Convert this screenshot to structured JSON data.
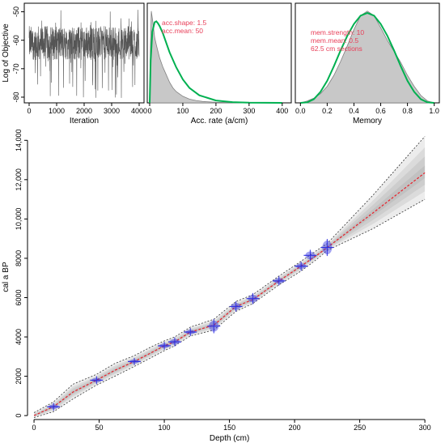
{
  "chart_data": [
    {
      "id": "iterations",
      "type": "line",
      "title": "",
      "xlabel": "Iteration",
      "ylabel": "Log of Objective",
      "xlim": [
        0,
        4000
      ],
      "ylim": [
        -82,
        -47
      ],
      "xticks": [
        0,
        1000,
        2000,
        3000,
        4000
      ],
      "yticks": [
        -50,
        -60,
        -70,
        -80
      ],
      "yticklabels": [
        "-50",
        "-60",
        "-70",
        "-80"
      ],
      "series": [
        {
          "n_points": 4000,
          "mean": -61,
          "spread": 6,
          "min": -81,
          "max": -49,
          "color": "#555555"
        }
      ]
    },
    {
      "id": "acc-rate",
      "type": "area",
      "title": "",
      "xlabel": "Acc. rate (a/cm)",
      "ylabel": "",
      "xlim": [
        0,
        420
      ],
      "xticks": [
        0,
        100,
        200,
        300,
        400
      ],
      "annotations": [
        "acc.shape:  1.5",
        "acc.mean:  50"
      ],
      "posterior": {
        "x": [
          0,
          2,
          5,
          10,
          15,
          20,
          25,
          30,
          40,
          50,
          60,
          70,
          80,
          100,
          120,
          140,
          160,
          180,
          200,
          250,
          300,
          350,
          400
        ],
        "y": [
          0.0,
          0.55,
          0.98,
          0.85,
          0.7,
          0.62,
          0.55,
          0.48,
          0.38,
          0.3,
          0.22,
          0.16,
          0.12,
          0.07,
          0.04,
          0.025,
          0.015,
          0.01,
          0.006,
          0.003,
          0.001,
          0.0005,
          0.0
        ]
      },
      "prior": {
        "x": [
          0,
          3,
          8,
          15,
          20,
          25,
          30,
          40,
          50,
          60,
          80,
          100,
          120,
          150,
          200,
          250,
          300,
          350,
          400
        ],
        "y": [
          0.0,
          0.45,
          0.76,
          0.86,
          0.87,
          0.85,
          0.82,
          0.74,
          0.64,
          0.54,
          0.38,
          0.25,
          0.16,
          0.08,
          0.025,
          0.008,
          0.002,
          0.0005,
          0.0
        ]
      },
      "colors": {
        "posterior_fill": "#c8c8c8",
        "posterior_line": "#808080",
        "prior": "#00b050"
      }
    },
    {
      "id": "memory",
      "type": "area",
      "title": "",
      "xlabel": "Memory",
      "ylabel": "",
      "xlim": [
        -0.02,
        1.02
      ],
      "xticks": [
        0.0,
        0.2,
        0.4,
        0.6,
        0.8,
        1.0
      ],
      "xticklabels": [
        "0.0",
        "0.2",
        "0.4",
        "0.6",
        "0.8",
        "1.0"
      ],
      "annotations": [
        "mem.strength:  10",
        "mem.mean:  0.5",
        "62.5 cm sections"
      ],
      "posterior": {
        "x": [
          0.0,
          0.05,
          0.1,
          0.15,
          0.2,
          0.25,
          0.3,
          0.35,
          0.4,
          0.45,
          0.5,
          0.55,
          0.6,
          0.65,
          0.7,
          0.75,
          0.8,
          0.85,
          0.9,
          0.95,
          1.0
        ],
        "y": [
          0.0,
          0.02,
          0.05,
          0.1,
          0.18,
          0.3,
          0.45,
          0.62,
          0.8,
          0.95,
          1.0,
          0.95,
          0.82,
          0.68,
          0.56,
          0.44,
          0.3,
          0.18,
          0.08,
          0.02,
          0.0
        ]
      },
      "prior": {
        "x": [
          0.0,
          0.05,
          0.1,
          0.15,
          0.2,
          0.25,
          0.3,
          0.35,
          0.4,
          0.45,
          0.5,
          0.55,
          0.6,
          0.65,
          0.7,
          0.75,
          0.8,
          0.85,
          0.9,
          0.95,
          1.0
        ],
        "y": [
          0.0,
          0.005,
          0.04,
          0.12,
          0.24,
          0.4,
          0.57,
          0.73,
          0.86,
          0.95,
          0.98,
          0.95,
          0.86,
          0.73,
          0.57,
          0.4,
          0.24,
          0.12,
          0.04,
          0.005,
          0.0
        ]
      },
      "colors": {
        "posterior_fill": "#c8c8c8",
        "posterior_line": "#808080",
        "prior": "#00b050"
      }
    },
    {
      "id": "age-depth",
      "type": "line",
      "title": "",
      "xlabel": "Depth (cm)",
      "ylabel": "cal a BP",
      "xlim": [
        -5,
        308
      ],
      "ylim": [
        -200,
        14300
      ],
      "xticks": [
        0,
        50,
        100,
        150,
        200,
        250,
        300
      ],
      "yticks": [
        0,
        2000,
        4000,
        6000,
        8000,
        10000,
        12000,
        14000
      ],
      "yticklabels": [
        "0",
        "2000",
        "4000",
        "6000",
        "8000",
        "10,000",
        "12,000",
        "14,000"
      ],
      "model": {
        "depth": [
          0,
          15,
          30,
          48,
          62,
          77,
          90,
          100,
          108,
          120,
          138,
          155,
          168,
          188,
          205,
          217,
          225,
          260,
          300
        ],
        "mean": [
          0,
          450,
          1200,
          1800,
          2300,
          2750,
          3200,
          3550,
          3750,
          4250,
          4600,
          5550,
          5900,
          6850,
          7600,
          8150,
          8550,
          10300,
          12350
        ],
        "lower": [
          -100,
          200,
          850,
          1550,
          2000,
          2500,
          2950,
          3300,
          3550,
          4050,
          4350,
          5300,
          5700,
          6650,
          7350,
          7950,
          8400,
          9500,
          11000
        ],
        "upper": [
          150,
          700,
          1600,
          2100,
          2650,
          3050,
          3500,
          3800,
          4000,
          4500,
          4900,
          5800,
          6150,
          7100,
          7850,
          8400,
          8750,
          11200,
          14200
        ]
      },
      "dates": [
        {
          "depth": 15,
          "age": 450,
          "sd": 120
        },
        {
          "depth": 48,
          "age": 1800,
          "sd": 120
        },
        {
          "depth": 77,
          "age": 2750,
          "sd": 100
        },
        {
          "depth": 100,
          "age": 3550,
          "sd": 120
        },
        {
          "depth": 108,
          "age": 3750,
          "sd": 150
        },
        {
          "depth": 120,
          "age": 4250,
          "sd": 120
        },
        {
          "depth": 138,
          "age": 4550,
          "sd": 280
        },
        {
          "depth": 155,
          "age": 5550,
          "sd": 180
        },
        {
          "depth": 168,
          "age": 5950,
          "sd": 200
        },
        {
          "depth": 188,
          "age": 6850,
          "sd": 150
        },
        {
          "depth": 205,
          "age": 7600,
          "sd": 150
        },
        {
          "depth": 212,
          "age": 8150,
          "sd": 200
        },
        {
          "depth": 225,
          "age": 8550,
          "sd": 350
        }
      ],
      "colors": {
        "mean": "#e8202a",
        "bounds": "#333333",
        "dates": "#3030e0",
        "envelope": "#7a7a7a"
      }
    }
  ]
}
